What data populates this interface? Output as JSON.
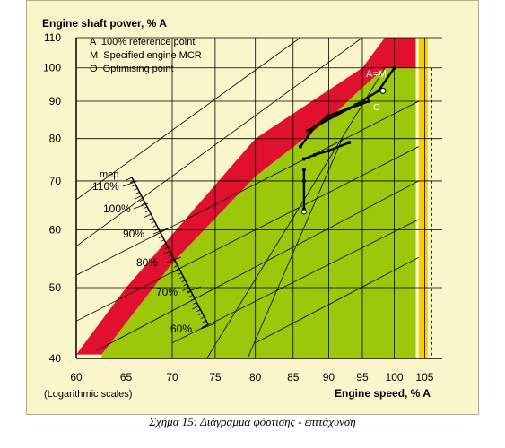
{
  "chart_data": {
    "type": "line",
    "title": "Engine shaft power, % A",
    "xlabel": "Engine speed, % A",
    "scale_note": "(Logarithmic scales)",
    "x_scale": "log",
    "y_scale": "log",
    "xlim": [
      60,
      108
    ],
    "ylim": [
      40,
      110
    ],
    "grid": true,
    "x_ticks": [
      60,
      65,
      70,
      75,
      80,
      85,
      90,
      95,
      100,
      105
    ],
    "y_ticks": [
      40,
      50,
      60,
      70,
      80,
      90,
      100,
      110
    ],
    "legend": {
      "placement": "top-left",
      "items": [
        "A  100% reference point",
        "M  Specified engine MCR",
        "O  Optimising point"
      ]
    },
    "mep_scale": {
      "title": "mep",
      "labels": [
        "110%",
        "100%",
        "90%",
        "80%",
        "70%",
        "60%"
      ]
    },
    "annotations": {
      "point_AM": "A=M",
      "point_O": "O"
    },
    "regions": [
      {
        "name": "red-overload-band",
        "color": "#e0102e",
        "upper": [
          [
            60,
            40.5
          ],
          [
            65,
            50
          ],
          [
            80,
            80
          ],
          [
            95,
            100
          ],
          [
            98.5,
            110
          ],
          [
            103.5,
            110
          ]
        ],
        "lower": [
          [
            62.5,
            40.5
          ],
          [
            70,
            54
          ],
          [
            80,
            71
          ],
          [
            90,
            85
          ],
          [
            95,
            94
          ],
          [
            98.5,
            100
          ],
          [
            103.5,
            100
          ]
        ]
      },
      {
        "name": "green-operating-area",
        "color": "#9bc80a",
        "upper": [
          [
            62.5,
            40.5
          ],
          [
            70,
            54
          ],
          [
            80,
            71
          ],
          [
            90,
            85
          ],
          [
            95,
            94
          ],
          [
            98.5,
            100
          ],
          [
            103.5,
            100
          ]
        ],
        "right_limit": 103.5
      },
      {
        "name": "yellow-speed-limit-band",
        "color": "#f5d000",
        "x_range": [
          104,
          105.5
        ],
        "y_range": [
          40,
          110
        ]
      }
    ],
    "series": [
      {
        "points": [
          [
            86.5,
            72.5
          ],
          [
            86.5,
            70
          ],
          [
            86.5,
            64
          ]
        ]
      },
      {
        "points": [
          [
            86.5,
            75
          ],
          [
            88,
            76
          ],
          [
            90,
            77
          ],
          [
            93,
            79
          ]
        ]
      },
      {
        "points": [
          [
            86,
            78
          ],
          [
            88,
            83
          ],
          [
            90,
            86
          ],
          [
            93,
            88
          ],
          [
            96,
            90
          ]
        ]
      },
      {
        "points": [
          [
            87,
            82
          ],
          [
            91,
            86
          ],
          [
            94,
            89
          ],
          [
            97.5,
            93
          ],
          [
            100,
            100
          ]
        ]
      }
    ],
    "colors": {
      "background": "#fbf5cc",
      "grid": "#000000",
      "red": "#e0102e",
      "green": "#9bc80a",
      "yellow": "#f5d000"
    }
  },
  "caption": "Σχήμα 15: Διάγραμμα φόρτισης - επιτάχυνση"
}
